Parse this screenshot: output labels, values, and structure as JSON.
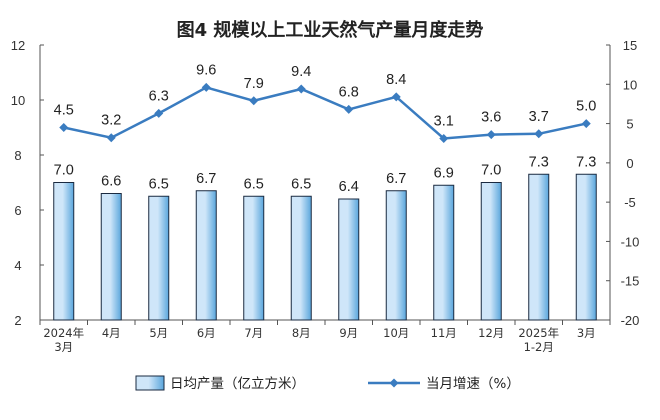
{
  "chart_data": {
    "type": "bar+line",
    "title": "图4  规模以上工业天然气产量月度走势",
    "categories": [
      [
        "2024年",
        "3月"
      ],
      [
        "4月"
      ],
      [
        "5月"
      ],
      [
        "6月"
      ],
      [
        "7月"
      ],
      [
        "8月"
      ],
      [
        "9月"
      ],
      [
        "10月"
      ],
      [
        "11月"
      ],
      [
        "12月"
      ],
      [
        "2025年",
        "1-2月"
      ],
      [
        "3月"
      ]
    ],
    "series": [
      {
        "name": "日均产量（亿立方米）",
        "type": "bar",
        "axis": "left",
        "values": [
          7.0,
          6.6,
          6.5,
          6.7,
          6.5,
          6.5,
          6.4,
          6.7,
          6.9,
          7.0,
          7.3,
          7.3
        ],
        "labels": [
          "7.0",
          "6.6",
          "6.5",
          "6.7",
          "6.5",
          "6.5",
          "6.4",
          "6.7",
          "6.9",
          "7.0",
          "7.3",
          "7.3"
        ]
      },
      {
        "name": "当月增速（%）",
        "type": "line",
        "axis": "right",
        "values": [
          4.5,
          3.2,
          6.3,
          9.6,
          7.9,
          9.4,
          6.8,
          8.4,
          3.1,
          3.6,
          3.7,
          5.0
        ],
        "labels": [
          "4.5",
          "3.2",
          "6.3",
          "9.6",
          "7.9",
          "9.4",
          "6.8",
          "8.4",
          "3.1",
          "3.6",
          "3.7",
          "5.0"
        ]
      }
    ],
    "y_left": {
      "min": 2,
      "max": 12,
      "ticks": [
        "2",
        "4",
        "6",
        "8",
        "10",
        "12"
      ]
    },
    "y_right": {
      "min": -20,
      "max": 15,
      "ticks": [
        "-20",
        "-15",
        "-10",
        "-5",
        "0",
        "5",
        "10",
        "15"
      ]
    },
    "grid": false,
    "legend_position": "bottom",
    "colors": {
      "bar_fill_light": "#cfe6f9",
      "bar_fill_dark": "#5aa6dc",
      "bar_stroke": "#1a2a40",
      "line": "#3a7cc0",
      "axis": "#555555"
    }
  }
}
